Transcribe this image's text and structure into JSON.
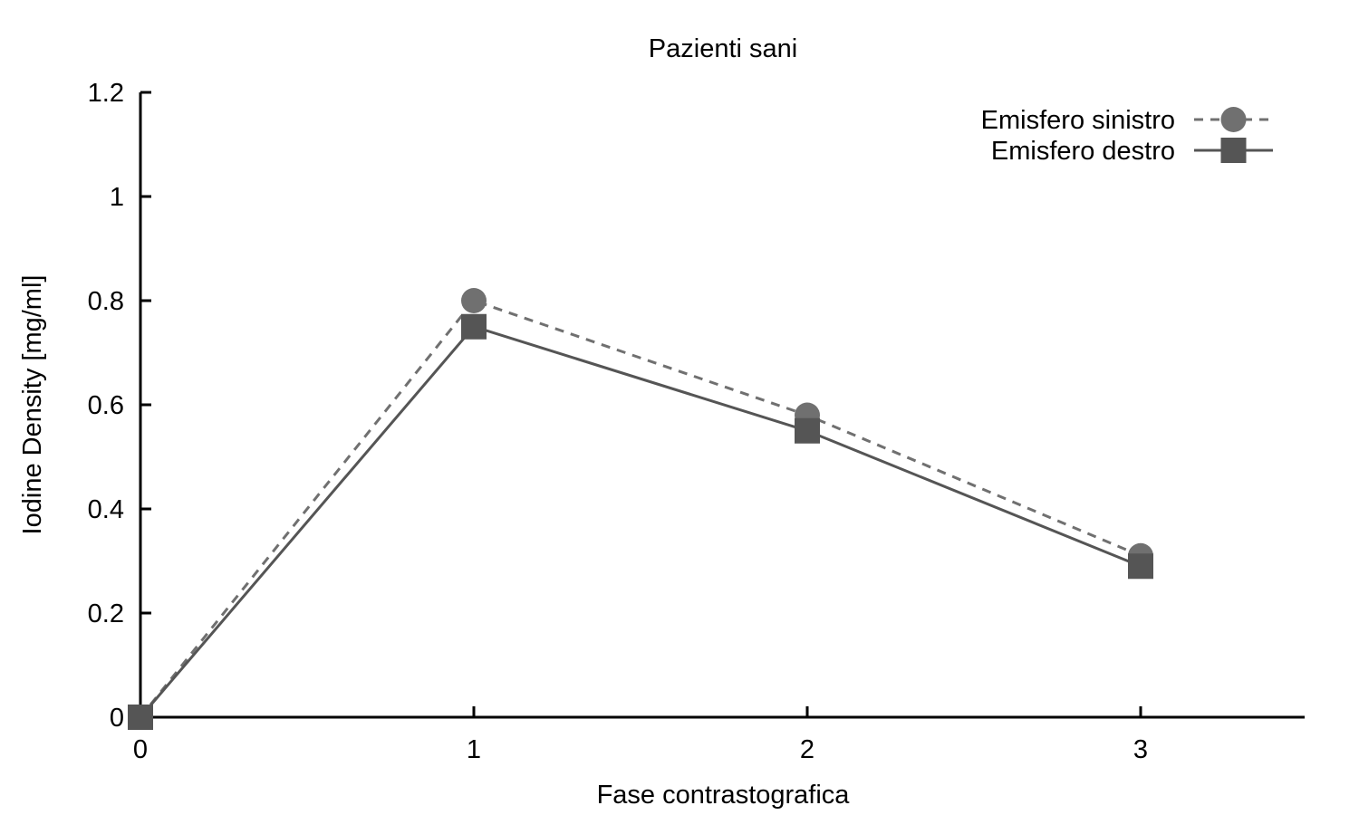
{
  "chart_data": {
    "type": "line",
    "title": "Pazienti sani",
    "xlabel": "Fase contrastografica",
    "ylabel": "Iodine Density [mg/ml]",
    "x": [
      0,
      1,
      2,
      3
    ],
    "xlim": [
      0,
      3.5
    ],
    "ylim": [
      0,
      1.2
    ],
    "xticks": [
      0,
      1,
      2,
      3
    ],
    "xtick_labels": [
      "0",
      "1",
      "2",
      "3"
    ],
    "yticks": [
      0,
      0.2,
      0.4,
      0.6,
      0.8,
      1.0,
      1.2
    ],
    "ytick_labels": [
      "0",
      "0.2",
      "0.4",
      "0.6",
      "0.8",
      "1",
      "1.2"
    ],
    "grid": false,
    "legend_position": "top-right",
    "series": [
      {
        "name": "Emisfero sinistro",
        "values": [
          0,
          0.8,
          0.58,
          0.31
        ],
        "marker": "circle",
        "line_style": "dashed",
        "color": "#707070"
      },
      {
        "name": "Emisfero destro",
        "values": [
          0,
          0.75,
          0.55,
          0.29
        ],
        "marker": "square",
        "line_style": "solid",
        "color": "#555555"
      }
    ]
  }
}
